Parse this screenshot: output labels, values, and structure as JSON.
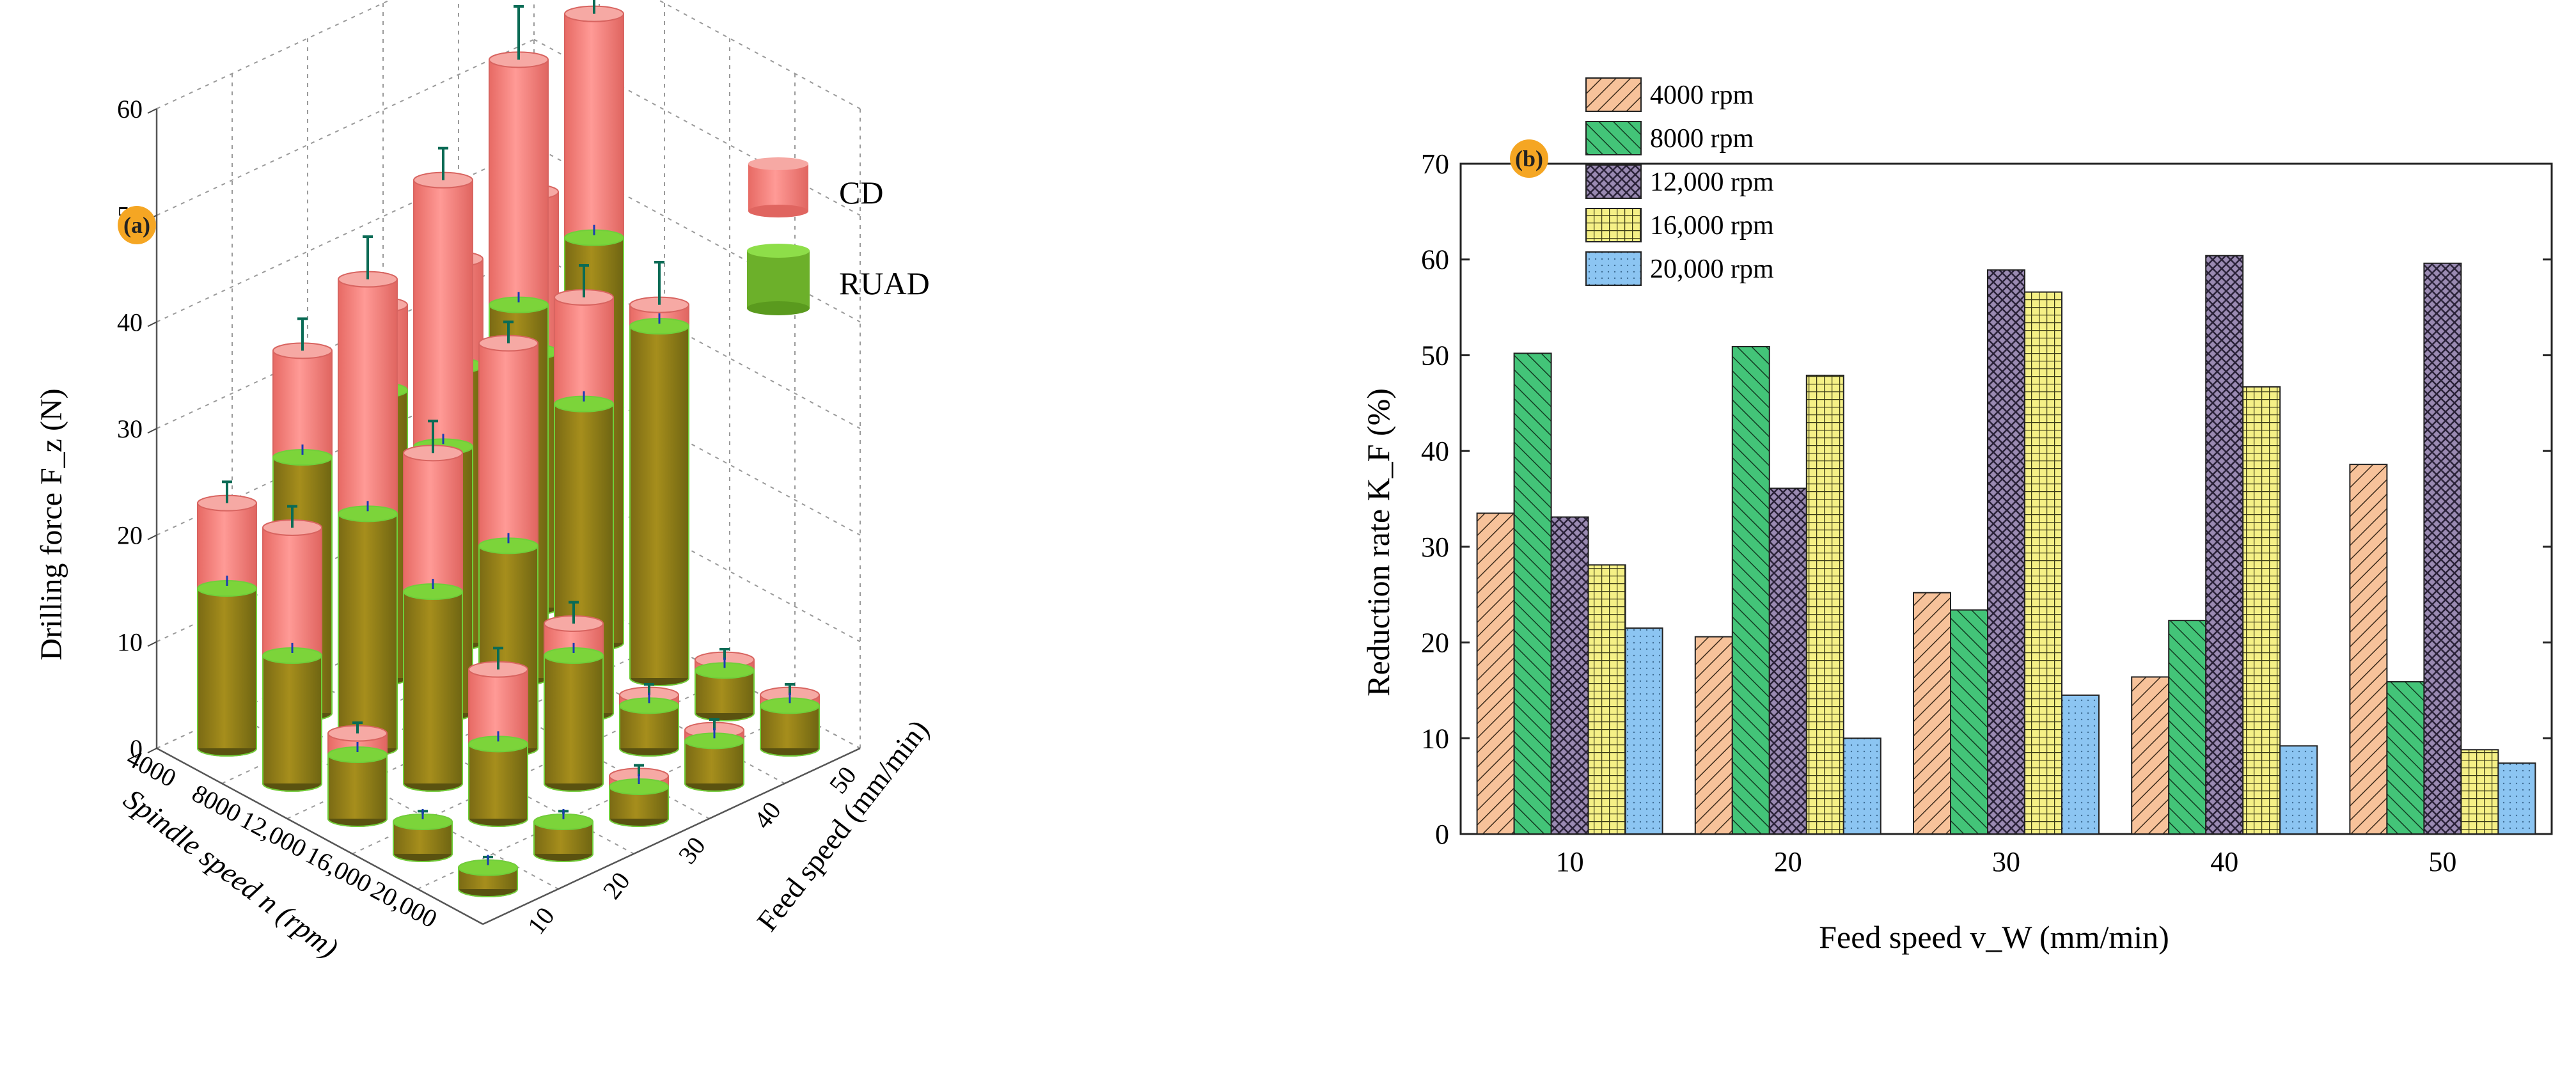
{
  "colors": {
    "cd": "#f47e7e",
    "cd_dark": "#c84a43",
    "ruad": "#6aa51f",
    "ruad_dark": "#7a6a16",
    "ruad_edge": "#7cd43a",
    "badge": "#f5a623",
    "grid": "#9a9a9a",
    "err_cd": "#0a6b55",
    "err_ruad": "#1a3bb3",
    "s1": "#f7c29a",
    "s2": "#43c478",
    "s3": "#9a8ab2",
    "s4": "#f5f086",
    "s5": "#8cc5f2"
  },
  "chart_data": [
    {
      "type": "bar3d",
      "panel_label": "(a)",
      "zlabel": "Drilling force F_z (N)",
      "xlabel": "Spindle speed n (rpm)",
      "ylabel": "Feed speed (mm/min)",
      "z_ticks": [
        "0",
        "10",
        "20",
        "30",
        "40",
        "50",
        "60"
      ],
      "zlim": [
        0,
        60
      ],
      "spindle_ticks": [
        "4000",
        "8000",
        "12,000",
        "16,000",
        "20,000"
      ],
      "feed_ticks": [
        "10",
        "20",
        "30",
        "40",
        "50"
      ],
      "legend": [
        "CD",
        "RUAD"
      ],
      "series": [
        {
          "name": "CD",
          "grid_values": [
            [
              23,
              34,
              35,
              36,
              39
            ],
            [
              24,
              44,
              50,
              58,
              59
            ],
            [
              8,
              31,
              38,
              39,
              35
            ],
            [
              3,
              14,
              15,
              5,
              5
            ],
            [
              2,
              3,
              4,
              5,
              5
            ]
          ],
          "errors": [
            [
              2,
              3,
              2,
              3,
              4
            ],
            [
              2,
              4,
              3,
              5,
              6
            ],
            [
              1,
              3,
              2,
              3,
              4
            ],
            [
              1,
              2,
              2,
              1,
              1
            ],
            [
              1,
              1,
              1,
              1,
              1
            ]
          ]
        },
        {
          "name": "RUAD",
          "grid_values": [
            [
              15,
              24,
              27,
              26,
              24
            ],
            [
              12,
              22,
              25,
              35,
              38
            ],
            [
              6,
              18,
              19,
              29,
              33
            ],
            [
              3,
              7,
              12,
              4,
              4
            ],
            [
              2,
              3,
              3,
              4,
              4
            ]
          ]
        }
      ]
    },
    {
      "type": "bar",
      "panel_label": "(b)",
      "xlabel": "Feed speed v_W (mm/min)",
      "ylabel": "Reduction rate K_F (%)",
      "ylim": [
        0,
        70
      ],
      "y_ticks": [
        "0",
        "10",
        "20",
        "30",
        "40",
        "50",
        "60",
        "70"
      ],
      "categories": [
        "10",
        "20",
        "30",
        "40",
        "50"
      ],
      "series": [
        {
          "name": "4000 rpm",
          "values": [
            33.5,
            20.6,
            25.2,
            16.4,
            38.6
          ]
        },
        {
          "name": "8000 rpm",
          "values": [
            50.2,
            50.9,
            23.4,
            22.3,
            15.9
          ]
        },
        {
          "name": "12,000 rpm",
          "values": [
            33.1,
            36.1,
            58.9,
            60.4,
            59.6
          ]
        },
        {
          "name": "16,000 rpm",
          "values": [
            28.1,
            47.9,
            56.6,
            46.7,
            8.8
          ]
        },
        {
          "name": "20,000 rpm",
          "values": [
            21.5,
            10.0,
            14.5,
            9.2,
            7.4
          ]
        }
      ]
    }
  ]
}
